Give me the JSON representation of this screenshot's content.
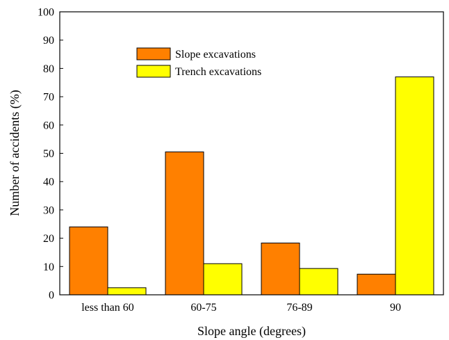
{
  "chart_data": {
    "type": "bar",
    "categories": [
      "less than 60",
      "60-75",
      "76-89",
      "90"
    ],
    "series": [
      {
        "name": "Slope excavations",
        "values": [
          24,
          50.5,
          18.3,
          7.3
        ],
        "color": "#FF8000"
      },
      {
        "name": "Trench excavations",
        "values": [
          2.5,
          11,
          9.3,
          77
        ],
        "color": "#FFFF00"
      }
    ],
    "xlabel": "Slope angle (degrees)",
    "ylabel": "Number of accidents (%)",
    "ylim": [
      0,
      100
    ],
    "yticks": [
      0,
      10,
      20,
      30,
      40,
      50,
      60,
      70,
      80,
      90,
      100
    ],
    "grid": false,
    "legend_position": "top-center"
  }
}
